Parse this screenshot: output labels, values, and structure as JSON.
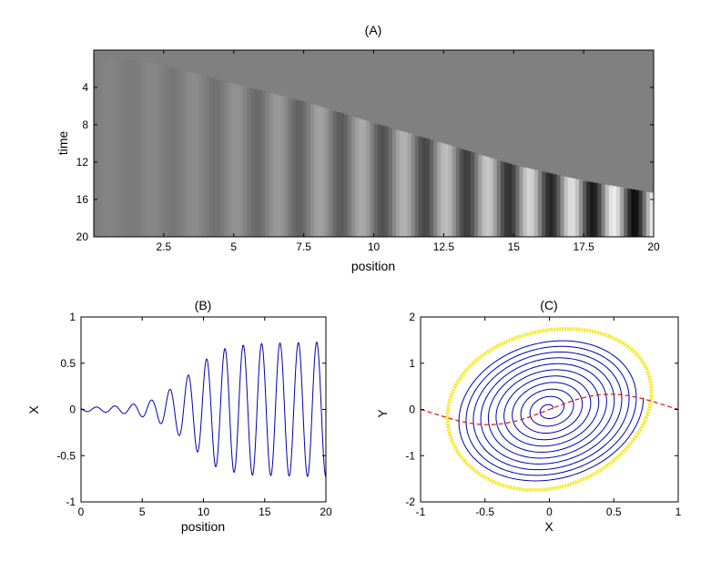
{
  "chart_data": [
    {
      "id": "A",
      "type": "heatmap",
      "title": "(A)",
      "xlabel": "position",
      "ylabel": "time",
      "xlim": [
        0,
        20
      ],
      "ylim": [
        0,
        20
      ],
      "y_reversed": true,
      "xticks": [
        "2.5",
        "5",
        "7.5",
        "10",
        "12.5",
        "15",
        "17.5",
        "20"
      ],
      "yticks": [
        "4",
        "8",
        "12",
        "16",
        "20"
      ],
      "colormap": "gray",
      "background": "#808080",
      "wavefront": [
        [
          1.5,
          1.0
        ],
        [
          3.0,
          2.0
        ],
        [
          5.0,
          3.6
        ],
        [
          7.5,
          5.5
        ],
        [
          10.0,
          7.8
        ],
        [
          12.5,
          10.0
        ],
        [
          15.0,
          12.3
        ],
        [
          17.5,
          14.0
        ],
        [
          20.0,
          15.3
        ]
      ],
      "pattern": {
        "wavelength": 1.5,
        "amp_at_x0": 0.02,
        "amp_at_x20": 0.73
      }
    },
    {
      "id": "B",
      "type": "line",
      "title": "(B)",
      "xlabel": "position",
      "ylabel": "X",
      "xlim": [
        0,
        20
      ],
      "ylim": [
        -1,
        1
      ],
      "xticks": [
        "0",
        "5",
        "10",
        "15",
        "20"
      ],
      "yticks": [
        "1",
        "0.5",
        "0",
        "-0.5",
        "-1"
      ],
      "color": "#0000b0",
      "envelope": [
        [
          0,
          0.02
        ],
        [
          2,
          0.03
        ],
        [
          4,
          0.05
        ],
        [
          6,
          0.11
        ],
        [
          8,
          0.28
        ],
        [
          9,
          0.4
        ],
        [
          10,
          0.52
        ],
        [
          11,
          0.62
        ],
        [
          12,
          0.67
        ],
        [
          14,
          0.71
        ],
        [
          20,
          0.73
        ]
      ],
      "wavelength": 1.5,
      "end_value": -0.72
    },
    {
      "id": "C",
      "type": "line",
      "title": "(C)",
      "xlabel": "X",
      "ylabel": "Y",
      "xlim": [
        -1,
        1
      ],
      "ylim": [
        -2,
        2
      ],
      "xticks": [
        "-1",
        "-0.5",
        "0",
        "0.5",
        "1"
      ],
      "yticks": [
        "2",
        "1",
        "0",
        "-1",
        "-2"
      ],
      "series": [
        {
          "kind": "limit-cycle",
          "color": "#f5e81c",
          "rx": 0.79,
          "ry": 1.72,
          "tilt": 0.35
        },
        {
          "kind": "spiral",
          "color": "#0000b0",
          "r_start": 0.02,
          "r_end": 0.73,
          "turns": 11,
          "tilt": 0.35
        },
        {
          "kind": "nullcline",
          "color": "#d01818",
          "dashed": true,
          "points": [
            [
              -1,
              0.05
            ],
            [
              -0.75,
              -0.25
            ],
            [
              -0.5,
              -0.35
            ],
            [
              -0.25,
              -0.2
            ],
            [
              0,
              0
            ],
            [
              0.25,
              0.2
            ],
            [
              0.5,
              0.35
            ],
            [
              0.75,
              0.25
            ],
            [
              1,
              -0.05
            ]
          ]
        }
      ]
    }
  ]
}
